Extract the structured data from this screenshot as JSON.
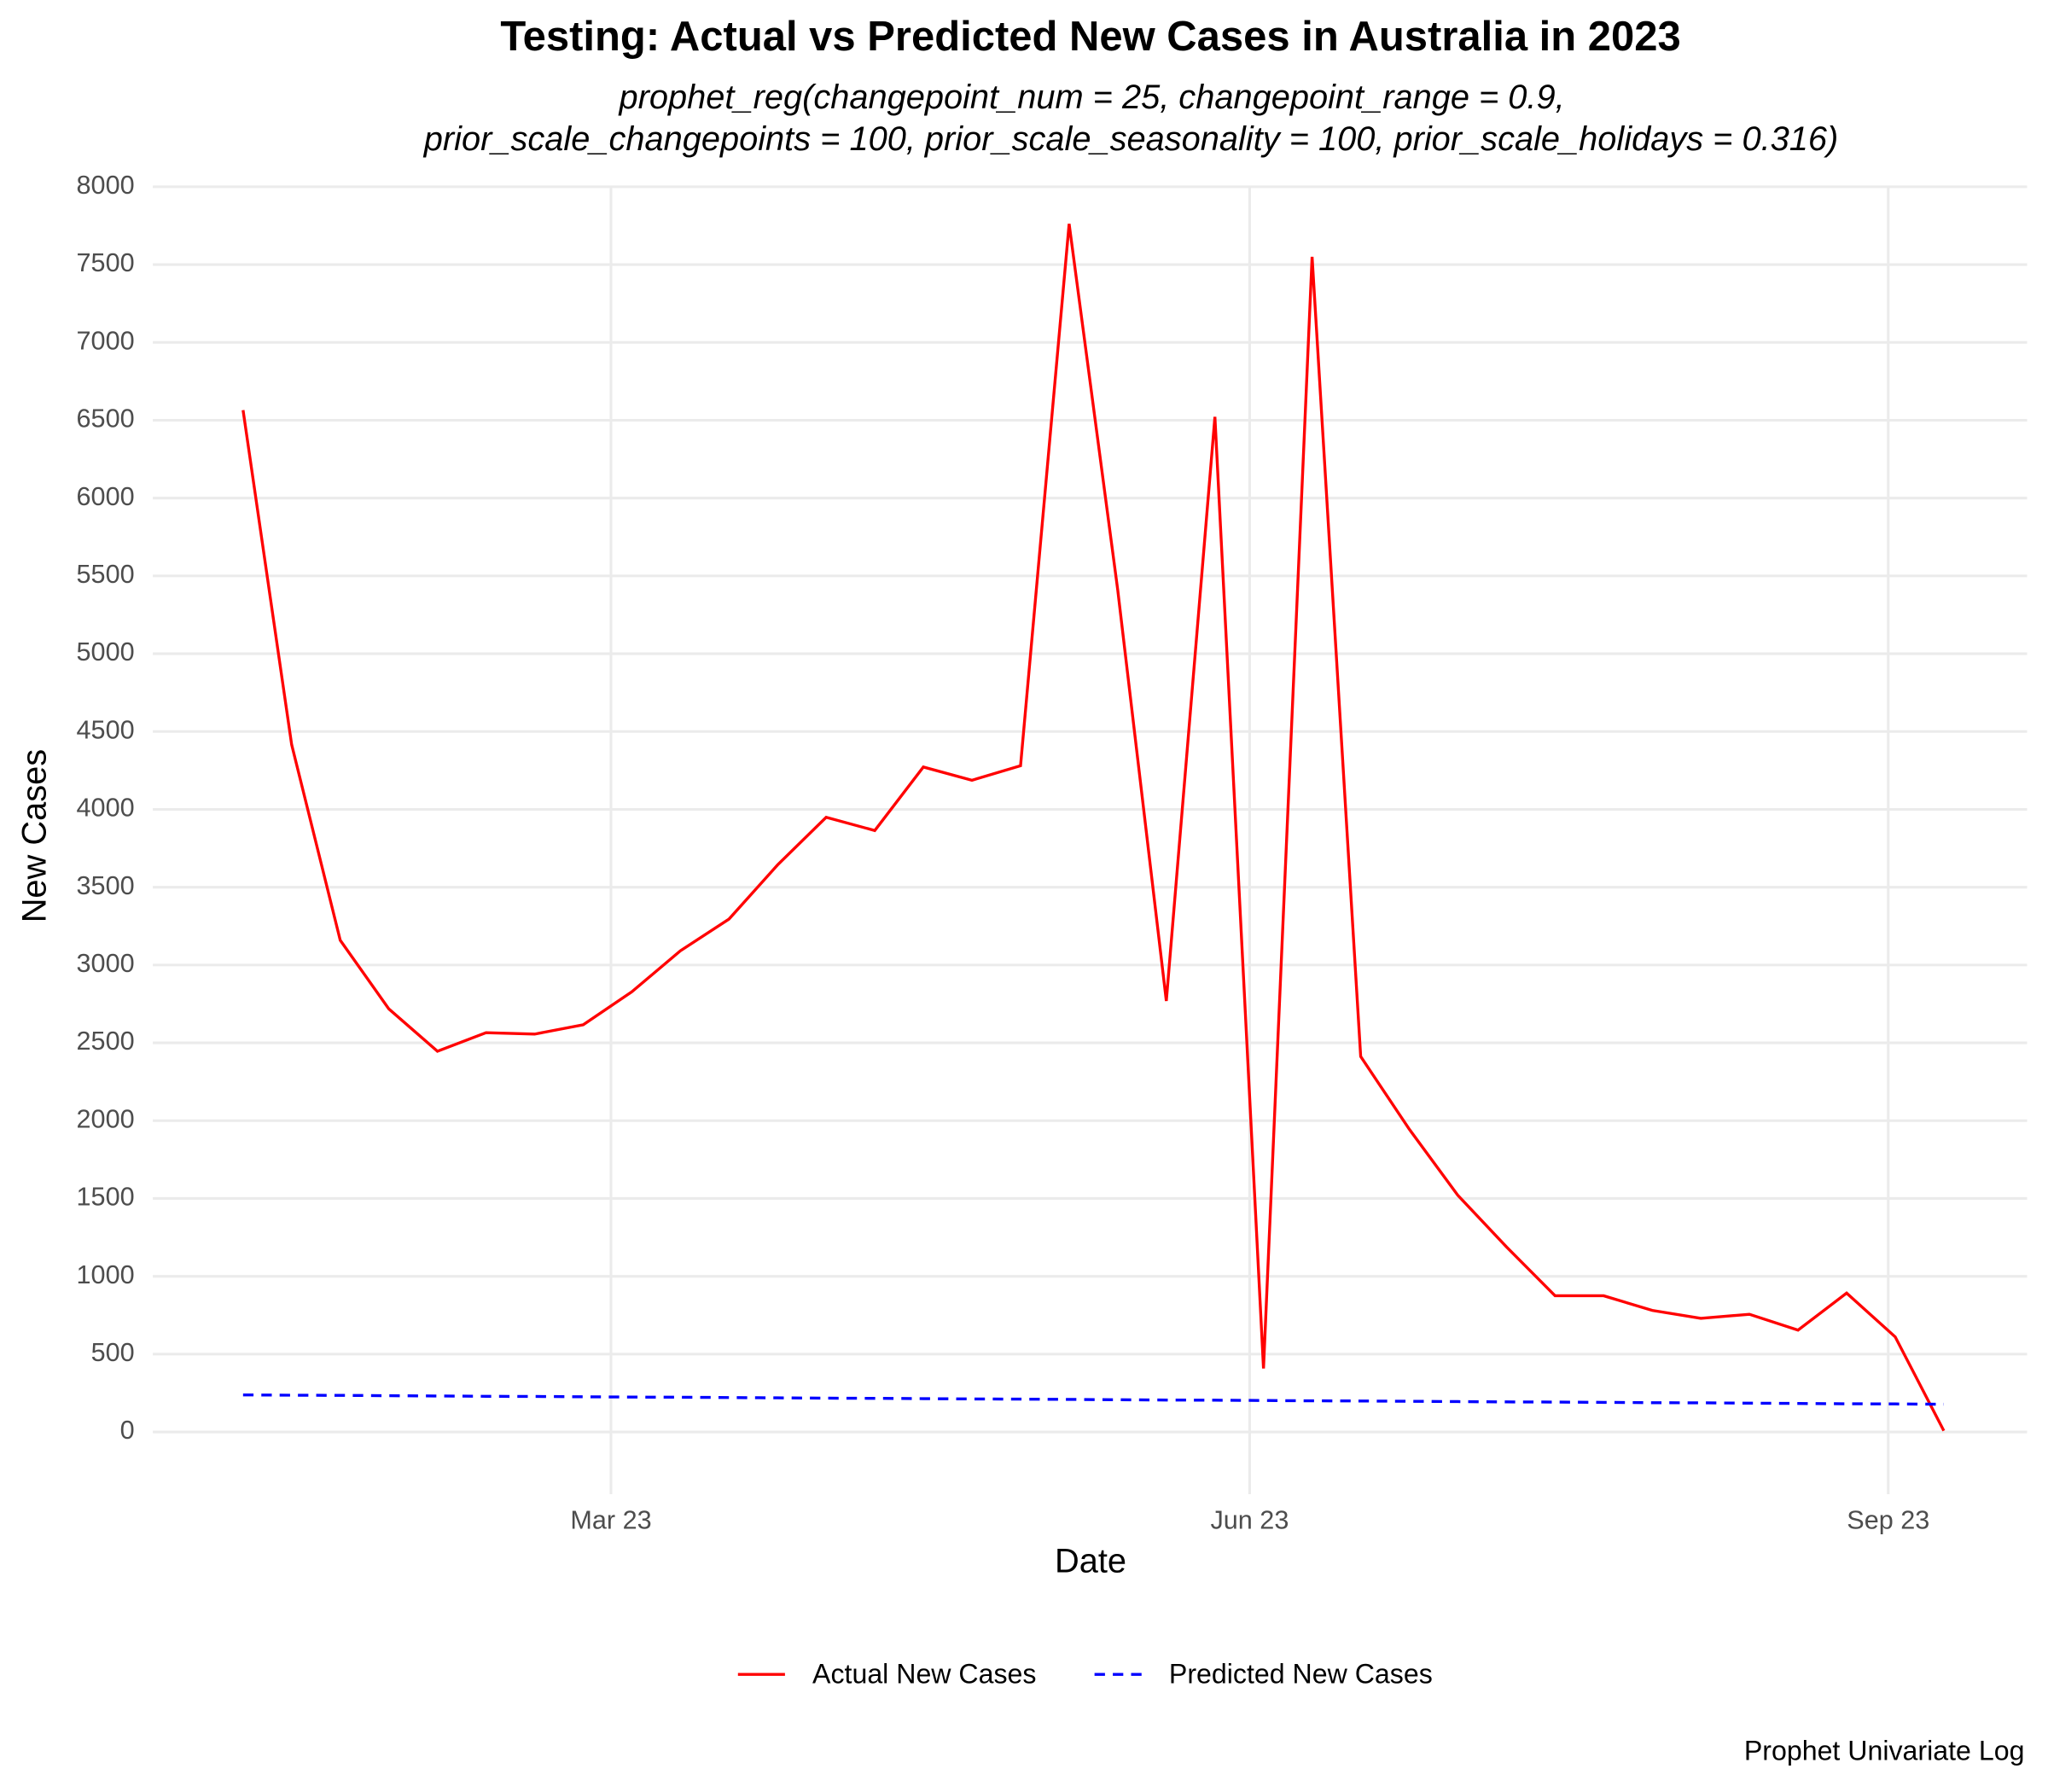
{
  "chart_data": {
    "type": "line",
    "title": "Testing: Actual vs Predicted New Cases in Australia in 2023",
    "subtitle": [
      "prophet_reg(changepoint_num = 25, changepoint_range = 0.9,",
      "prior_scale_changepoints = 100, prior_scale_seasonality = 100, prior_scale_holidays = 0.316)"
    ],
    "x_label": "Date",
    "y_label": "New Cases",
    "caption": "Prophet Univariate Log",
    "x": [
      "2023-01-07",
      "2023-01-14",
      "2023-01-21",
      "2023-01-28",
      "2023-02-04",
      "2023-02-11",
      "2023-02-18",
      "2023-02-25",
      "2023-03-04",
      "2023-03-11",
      "2023-03-18",
      "2023-03-25",
      "2023-04-01",
      "2023-04-08",
      "2023-04-15",
      "2023-04-22",
      "2023-04-29",
      "2023-05-06",
      "2023-05-13",
      "2023-05-20",
      "2023-05-27",
      "2023-06-03",
      "2023-06-10",
      "2023-06-17",
      "2023-06-24",
      "2023-07-01",
      "2023-07-08",
      "2023-07-15",
      "2023-07-22",
      "2023-07-29",
      "2023-08-05",
      "2023-08-12",
      "2023-08-19",
      "2023-08-26",
      "2023-09-02",
      "2023-09-09"
    ],
    "series": [
      {
        "name": "Actual New Cases",
        "color": "#ff0000",
        "dash": "solid",
        "values": [
          6565,
          4416,
          3159,
          2718,
          2446,
          2565,
          2556,
          2616,
          2828,
          3091,
          3295,
          3643,
          3949,
          3864,
          4272,
          4187,
          4280,
          7762,
          5410,
          2769,
          6522,
          408,
          7550,
          2412,
          1945,
          1520,
          1189,
          875,
          875,
          781,
          730,
          756,
          654,
          892,
          611,
          8
        ]
      },
      {
        "name": "Predicted New Cases",
        "color": "#0000ff",
        "dash": "dashed",
        "values": [
          238,
          236,
          235,
          233,
          231,
          229,
          228,
          226,
          224,
          223,
          221,
          219,
          217,
          216,
          214,
          212,
          211,
          209,
          207,
          205,
          204,
          202,
          200,
          199,
          197,
          195,
          193,
          192,
          190,
          188,
          187,
          185,
          183,
          181,
          180,
          178
        ]
      }
    ],
    "xlim": [
      "2022-12-25",
      "2023-09-21"
    ],
    "xticks": [
      {
        "value": "2023-03-01",
        "label": "Mar 23"
      },
      {
        "value": "2023-06-01",
        "label": "Jun 23"
      },
      {
        "value": "2023-09-01",
        "label": "Sep 23"
      }
    ],
    "ylim": [
      -400,
      8000
    ],
    "yticks": [
      0,
      500,
      1000,
      1500,
      2000,
      2500,
      3000,
      3500,
      4000,
      4500,
      5000,
      5500,
      6000,
      6500,
      7000,
      7500,
      8000
    ],
    "grid": true,
    "legend": "bottom"
  }
}
